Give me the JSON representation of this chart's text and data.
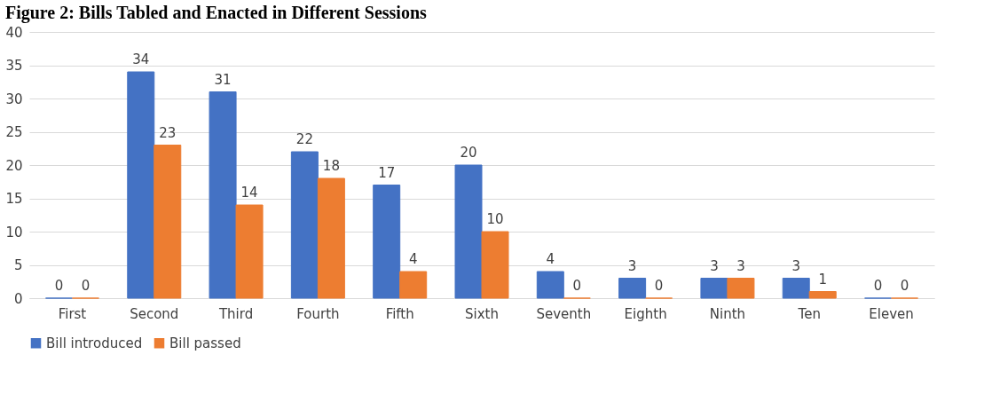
{
  "chart_data": {
    "type": "bar",
    "title": "Figure 2: Bills Tabled and Enacted in Different Sessions",
    "categories": [
      "First",
      "Second",
      "Third",
      "Fourth",
      "Fifth",
      "Sixth",
      "Seventh",
      "Eighth",
      "Ninth",
      "Ten",
      "Eleven"
    ],
    "series": [
      {
        "name": "Bill introduced",
        "color": "#4472c4",
        "values": [
          0,
          34,
          31,
          22,
          17,
          20,
          4,
          3,
          3,
          3,
          0
        ]
      },
      {
        "name": "Bill passed",
        "color": "#ed7d31",
        "values": [
          0,
          23,
          14,
          18,
          4,
          10,
          0,
          0,
          3,
          1,
          0
        ]
      }
    ],
    "ylim": [
      0,
      40
    ],
    "yticks": [
      0,
      5,
      10,
      15,
      20,
      25,
      30,
      35,
      40
    ],
    "grid": "y",
    "legend": "bottom",
    "data_labels": true
  }
}
